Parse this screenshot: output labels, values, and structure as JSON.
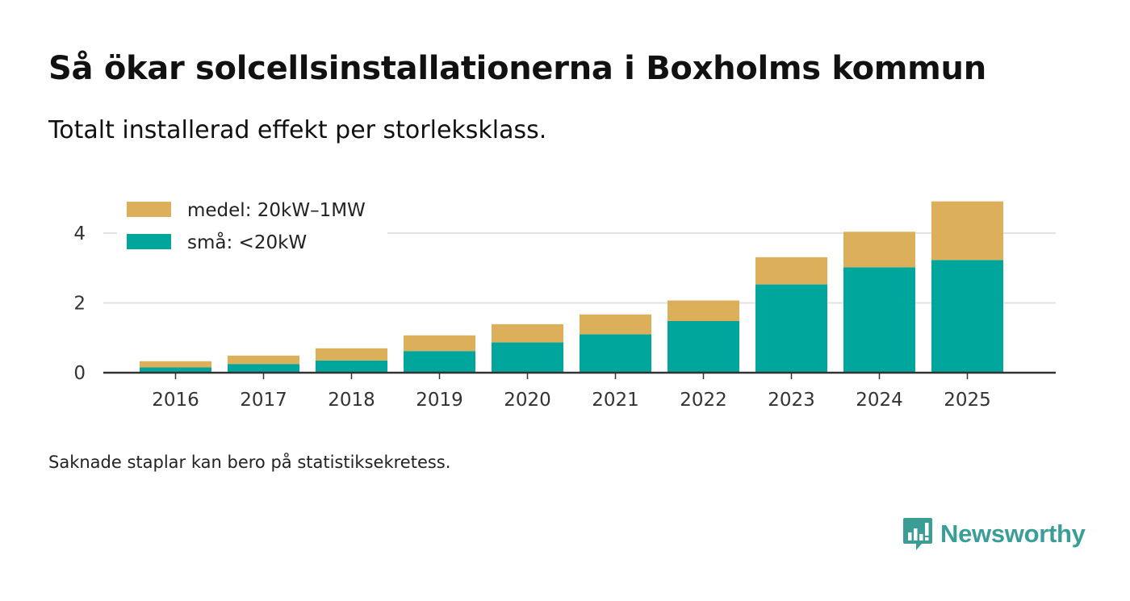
{
  "title": "Så ökar solcellsinstallationerna i Boxholms kommun",
  "subtitle": "Totalt installerad effekt per storleksklass.",
  "footnote": "Saknade staplar kan bero på statistiksekretess.",
  "brand": {
    "name": "Newsworthy"
  },
  "colors": {
    "small": "#00a59b",
    "medium": "#dcaf5a",
    "grid": "#e2e2e2",
    "axis": "#333333",
    "brand": "#3a9e96"
  },
  "chart_data": {
    "type": "bar",
    "stacked": true,
    "title": "Så ökar solcellsinstallationerna i Boxholms kommun",
    "subtitle": "Totalt installerad effekt per storleksklass.",
    "categories": [
      "2016",
      "2017",
      "2018",
      "2019",
      "2020",
      "2021",
      "2022",
      "2023",
      "2024",
      "2025"
    ],
    "series": [
      {
        "name": "små: <20kW",
        "color": "#00a59b",
        "values": [
          0.15,
          0.25,
          0.35,
          0.62,
          0.87,
          1.1,
          1.48,
          2.53,
          3.02,
          3.23
        ]
      },
      {
        "name": "medel: 20kW–1MW",
        "color": "#dcaf5a",
        "values": [
          0.18,
          0.24,
          0.35,
          0.45,
          0.52,
          0.57,
          0.59,
          0.78,
          1.02,
          1.68
        ]
      }
    ],
    "xlabel": "",
    "ylabel": "",
    "yticks": [
      0,
      2,
      4
    ],
    "ylim": [
      0,
      5
    ],
    "grid": true,
    "legend": {
      "position": "top-left",
      "order": [
        "medel: 20kW–1MW",
        "små: <20kW"
      ]
    }
  }
}
